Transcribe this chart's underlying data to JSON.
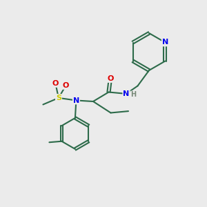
{
  "bg_color": "#ebebeb",
  "bond_color": "#2d6b4a",
  "atom_colors": {
    "N": "#0000ee",
    "O": "#dd0000",
    "S": "#cccc00",
    "H": "#778877",
    "C": "#2d6b4a"
  }
}
